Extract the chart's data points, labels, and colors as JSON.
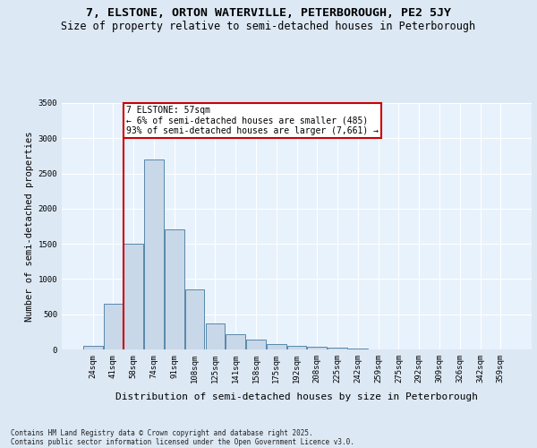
{
  "title": "7, ELSTONE, ORTON WATERVILLE, PETERBOROUGH, PE2 5JY",
  "subtitle": "Size of property relative to semi-detached houses in Peterborough",
  "xlabel": "Distribution of semi-detached houses by size in Peterborough",
  "ylabel": "Number of semi-detached properties",
  "footnote1": "Contains HM Land Registry data © Crown copyright and database right 2025.",
  "footnote2": "Contains public sector information licensed under the Open Government Licence v3.0.",
  "bar_labels": [
    "24sqm",
    "41sqm",
    "58sqm",
    "74sqm",
    "91sqm",
    "108sqm",
    "125sqm",
    "141sqm",
    "158sqm",
    "175sqm",
    "192sqm",
    "208sqm",
    "225sqm",
    "242sqm",
    "259sqm",
    "275sqm",
    "292sqm",
    "309sqm",
    "326sqm",
    "342sqm",
    "359sqm"
  ],
  "bar_values": [
    50,
    650,
    1500,
    2700,
    1700,
    850,
    375,
    220,
    140,
    80,
    55,
    35,
    20,
    10,
    5,
    3,
    2,
    1,
    0,
    0,
    0
  ],
  "bar_color": "#c8d8e8",
  "bar_edge_color": "#5888aa",
  "property_line_label": "7 ELSTONE: 57sqm",
  "annotation_smaller": "← 6% of semi-detached houses are smaller (485)",
  "annotation_larger": "93% of semi-detached houses are larger (7,661) →",
  "property_line_color": "#cc0000",
  "annotation_box_color": "#cc0000",
  "ylim": [
    0,
    3500
  ],
  "yticks": [
    0,
    500,
    1000,
    1500,
    2000,
    2500,
    3000,
    3500
  ],
  "bg_color": "#dce8f4",
  "plot_bg_color": "#e8f2fc",
  "title_fontsize": 9.5,
  "subtitle_fontsize": 8.5,
  "ylabel_fontsize": 7.5,
  "xlabel_fontsize": 8,
  "tick_fontsize": 6.5,
  "annot_fontsize": 7,
  "footnote_fontsize": 5.5
}
